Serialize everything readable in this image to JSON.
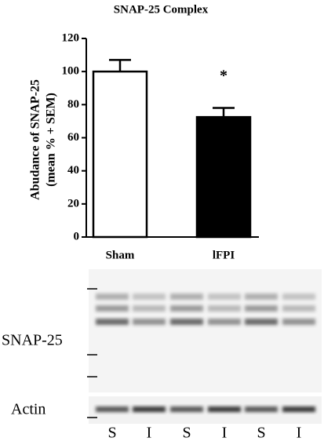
{
  "chart_data": {
    "type": "bar",
    "title": "SNAP-25 Complex",
    "ylabel": [
      "Abudance of SNAP-25",
      "(mean % + SEM)"
    ],
    "categories": [
      "Sham",
      "lFPI"
    ],
    "values": [
      100,
      72.5
    ],
    "errors": [
      7,
      5.5
    ],
    "colors": [
      "#ffffff",
      "#000000"
    ],
    "annotation": "*",
    "ylim": [
      0,
      120
    ],
    "yticks": [
      0,
      20,
      40,
      60,
      80,
      100,
      120
    ]
  },
  "blot": {
    "labels": [
      "SNAP-25",
      "Actin"
    ],
    "lanes": [
      "S",
      "I",
      "S",
      "I",
      "S",
      "I"
    ]
  }
}
